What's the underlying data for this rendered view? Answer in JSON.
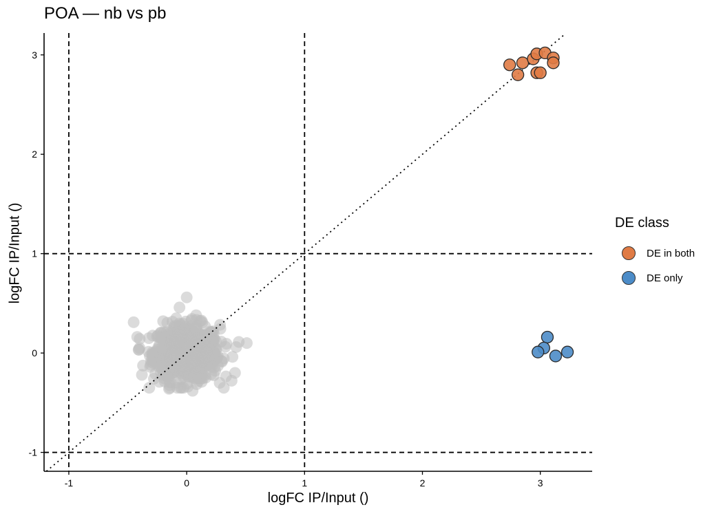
{
  "chart_data": {
    "type": "scatter",
    "title": "POA — nb vs pb",
    "xlabel": "logFC IP/Input ()",
    "ylabel": "logFC IP/Input ()",
    "xlim": [
      -1.21,
      3.44
    ],
    "ylim": [
      -1.19,
      3.22
    ],
    "x_ticks": [
      -1,
      0,
      1,
      2,
      3
    ],
    "y_ticks": [
      -1,
      0,
      1,
      2,
      3
    ],
    "x_tick_labels": [
      "-1",
      "0",
      "1",
      "2",
      "3"
    ],
    "y_tick_labels": [
      "-1",
      "0",
      "1",
      "2",
      "3"
    ],
    "grid": false,
    "reference_lines": {
      "vertical_dashed": [
        -1,
        1
      ],
      "horizontal_dashed": [
        -1,
        1
      ],
      "diagonal_dotted": "y = x"
    },
    "legend": {
      "title": "DE class",
      "placement": "right",
      "entries": [
        {
          "label": "DE in both",
          "color": "#E07B45"
        },
        {
          "label": "DE only",
          "color": "#4C8CC8"
        }
      ]
    },
    "series": [
      {
        "name": "DE in both",
        "color": "#E07B45",
        "points": [
          {
            "x": 2.74,
            "y": 2.9
          },
          {
            "x": 2.85,
            "y": 2.92
          },
          {
            "x": 2.81,
            "y": 2.8
          },
          {
            "x": 2.94,
            "y": 2.96
          },
          {
            "x": 2.97,
            "y": 3.01
          },
          {
            "x": 3.04,
            "y": 3.02
          },
          {
            "x": 2.97,
            "y": 2.82
          },
          {
            "x": 3.0,
            "y": 2.82
          },
          {
            "x": 3.11,
            "y": 2.97
          },
          {
            "x": 3.11,
            "y": 2.92
          }
        ]
      },
      {
        "name": "DE only",
        "color": "#4C8CC8",
        "points": [
          {
            "x": 3.06,
            "y": 0.16
          },
          {
            "x": 3.03,
            "y": 0.05
          },
          {
            "x": 2.98,
            "y": 0.01
          },
          {
            "x": 3.13,
            "y": -0.03
          },
          {
            "x": 3.23,
            "y": 0.01
          }
        ]
      },
      {
        "name": "not DE",
        "color": "#BEBEBE",
        "count": 700,
        "x_range": [
          -0.45,
          0.51
        ],
        "y_range": [
          -0.38,
          0.56
        ],
        "center": {
          "x": 0.0,
          "y": 0.0
        },
        "points": [
          {
            "x": -0.45,
            "y": 0.31
          },
          {
            "x": 0.51,
            "y": 0.1
          },
          {
            "x": 0.0,
            "y": 0.56
          },
          {
            "x": -0.38,
            "y": -0.22
          },
          {
            "x": 0.41,
            "y": -0.2
          },
          {
            "x": 0.05,
            "y": -0.38
          },
          {
            "x": -0.15,
            "y": -0.36
          },
          {
            "x": 0.28,
            "y": -0.3
          },
          {
            "x": -0.4,
            "y": 0.05
          },
          {
            "x": 0.42,
            "y": 0.06
          },
          {
            "x": 0.08,
            "y": 0.38
          },
          {
            "x": -0.2,
            "y": 0.32
          }
        ]
      }
    ]
  }
}
